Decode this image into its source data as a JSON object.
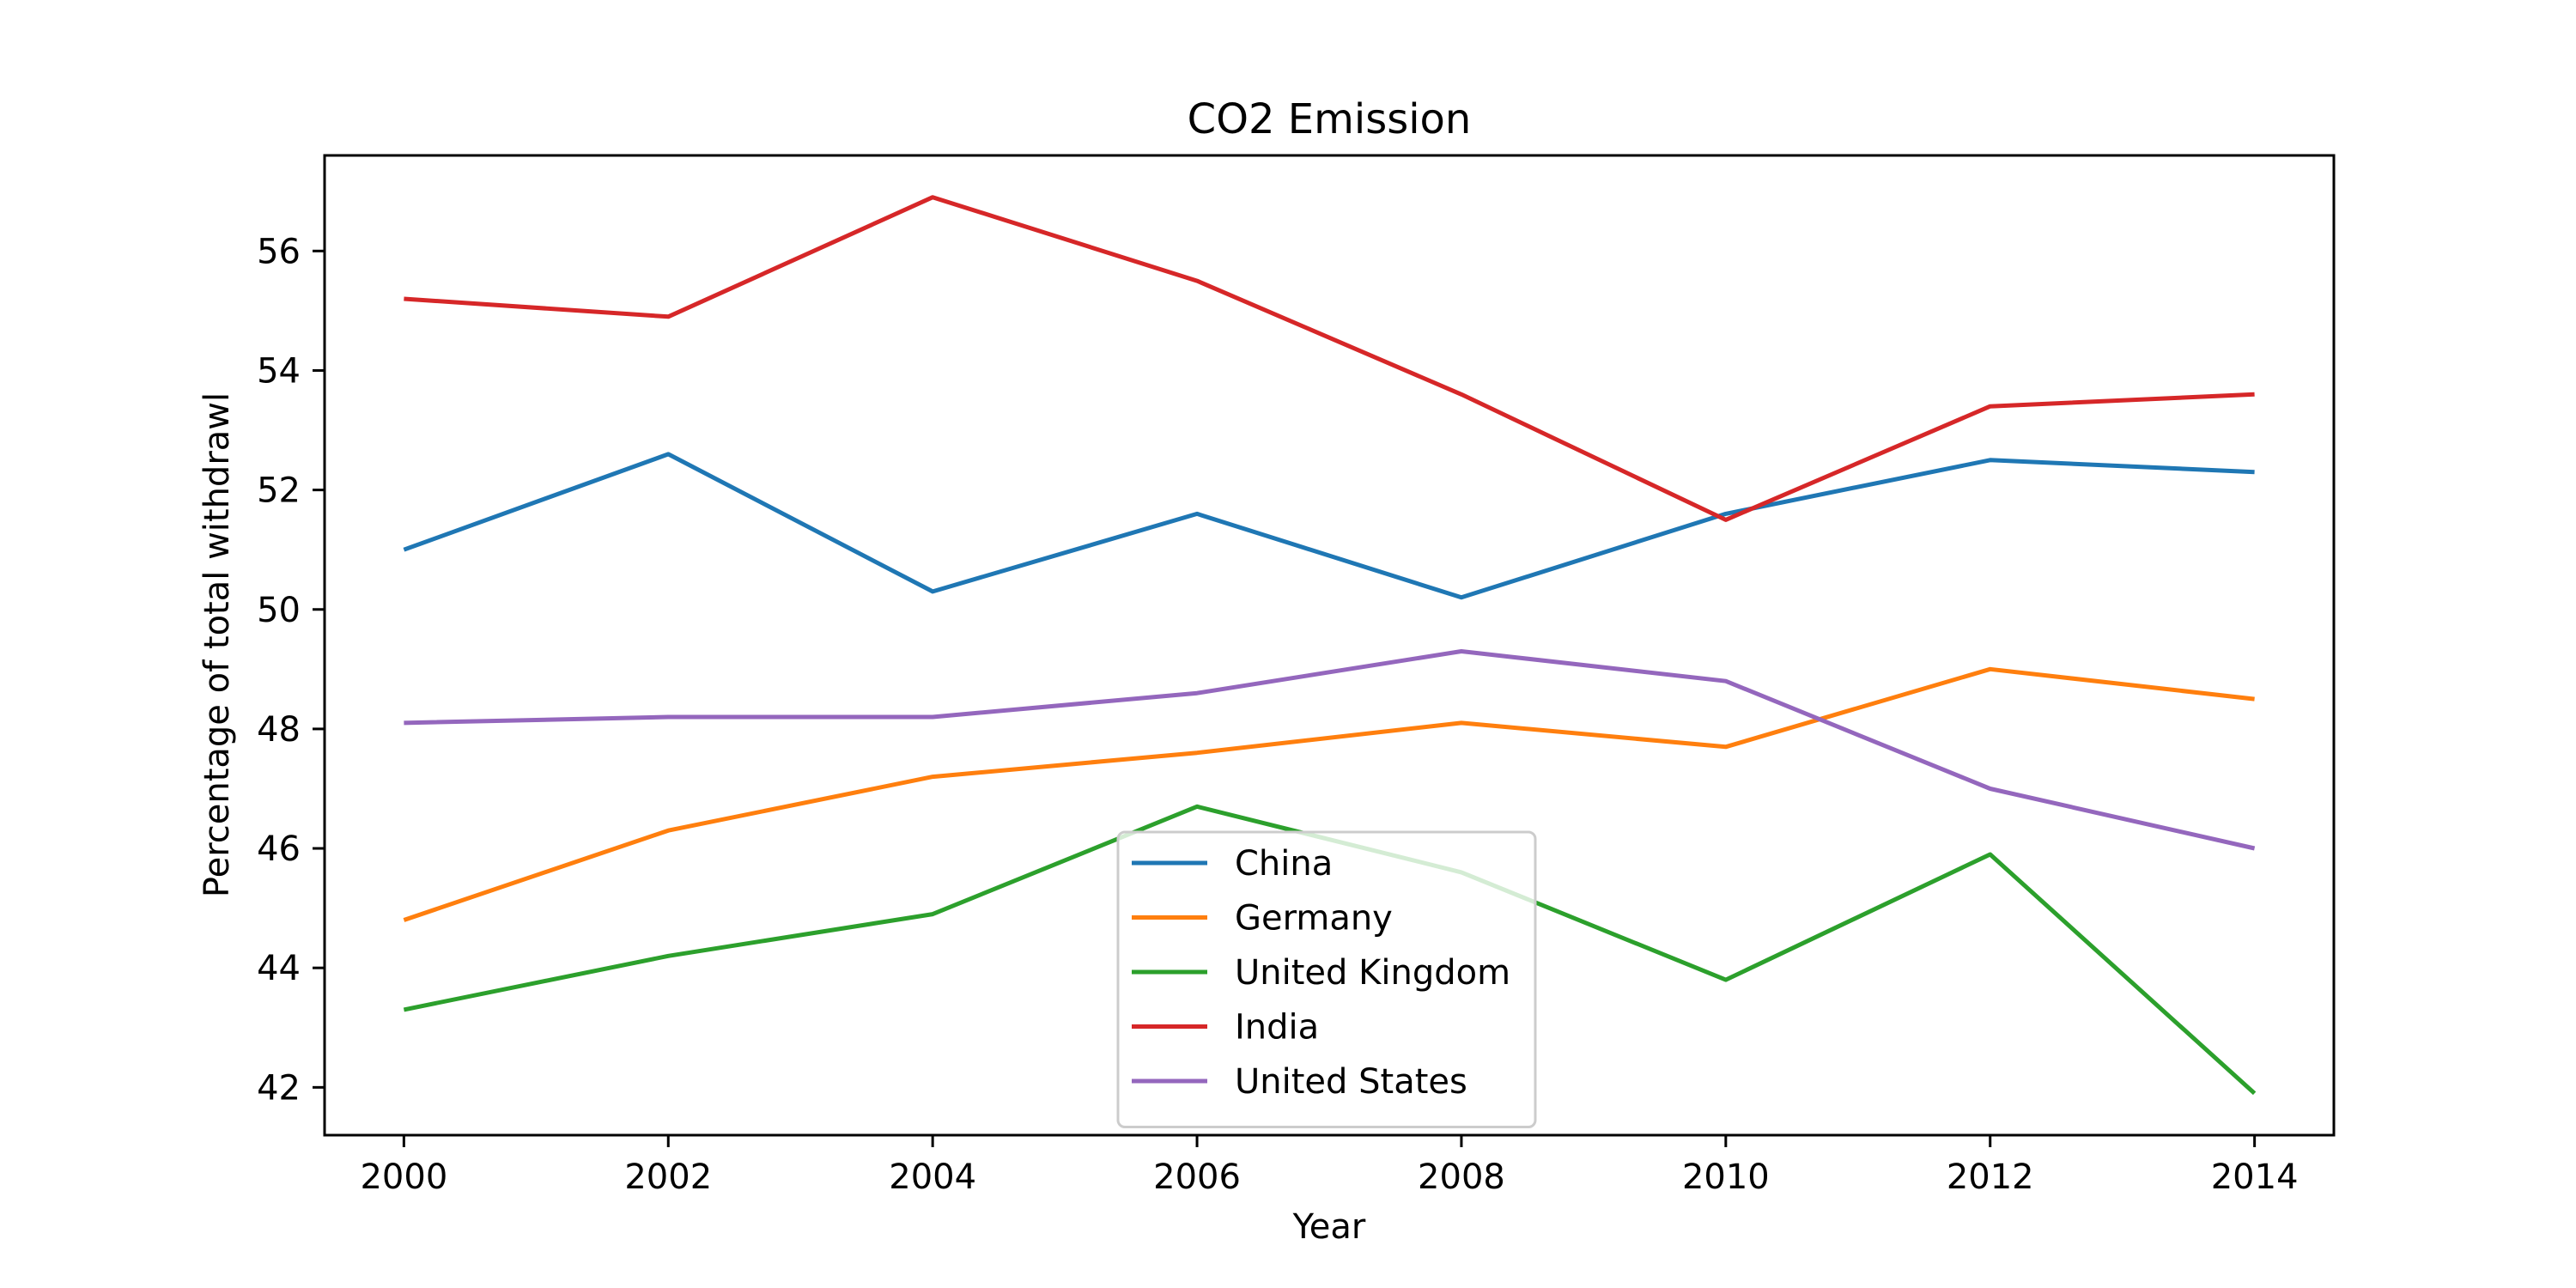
{
  "chart_data": {
    "type": "line",
    "title": "CO2 Emission",
    "xlabel": "Year",
    "ylabel": "Percentage of total withdrawl",
    "x": [
      2000,
      2002,
      2004,
      2006,
      2008,
      2010,
      2012,
      2014
    ],
    "xlim": [
      1999.4,
      2014.6
    ],
    "ylim": [
      41.2,
      57.6
    ],
    "xticks": [
      2000,
      2002,
      2004,
      2006,
      2008,
      2010,
      2012,
      2014
    ],
    "yticks": [
      42,
      44,
      46,
      48,
      50,
      52,
      54,
      56
    ],
    "grid": false,
    "legend_position": "lower-center",
    "series": [
      {
        "name": "China",
        "color": "#1f77b4",
        "values": [
          51.0,
          52.6,
          50.3,
          51.6,
          50.2,
          51.6,
          52.5,
          52.3
        ]
      },
      {
        "name": "Germany",
        "color": "#ff7f0e",
        "values": [
          44.8,
          46.3,
          47.2,
          47.6,
          48.1,
          47.7,
          49.0,
          48.5
        ]
      },
      {
        "name": "United Kingdom",
        "color": "#2ca02c",
        "values": [
          43.3,
          44.2,
          44.9,
          46.7,
          45.6,
          43.8,
          45.9,
          41.9
        ]
      },
      {
        "name": "India",
        "color": "#d62728",
        "values": [
          55.2,
          54.9,
          56.9,
          55.5,
          53.6,
          51.5,
          53.4,
          53.6
        ]
      },
      {
        "name": "United States",
        "color": "#9467bd",
        "values": [
          48.1,
          48.2,
          48.2,
          48.6,
          49.3,
          48.8,
          47.0,
          46.0
        ]
      }
    ]
  }
}
